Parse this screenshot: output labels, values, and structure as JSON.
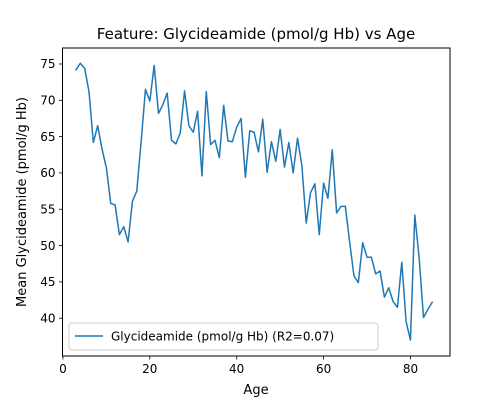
{
  "chart_data": {
    "type": "line",
    "title": "Feature: Glycideamide (pmol/g Hb) vs Age",
    "xlabel": "Age",
    "ylabel": "Mean Glycideamide (pmol/g Hb)",
    "xlim": [
      -0.1,
      89.1
    ],
    "ylim": [
      34.8,
      77.2
    ],
    "xticks": [
      0,
      20,
      40,
      60,
      80
    ],
    "yticks": [
      40,
      45,
      50,
      55,
      60,
      65,
      70,
      75
    ],
    "grid": false,
    "legend_position": "lower-left",
    "series": [
      {
        "name": "Glycideamide (pmol/g Hb) (R2=0.07)",
        "color": "#1f77b4",
        "x": [
          3,
          4,
          5,
          6,
          7,
          8,
          9,
          10,
          11,
          12,
          13,
          14,
          15,
          16,
          17,
          18,
          19,
          20,
          21,
          22,
          23,
          24,
          25,
          26,
          27,
          28,
          29,
          30,
          31,
          32,
          33,
          34,
          35,
          36,
          37,
          38,
          39,
          40,
          41,
          42,
          43,
          44,
          45,
          46,
          47,
          48,
          49,
          50,
          51,
          52,
          53,
          54,
          55,
          56,
          57,
          58,
          59,
          60,
          61,
          62,
          63,
          64,
          65,
          66,
          67,
          68,
          69,
          70,
          71,
          72,
          73,
          74,
          75,
          76,
          77,
          78,
          79,
          80,
          81,
          82,
          83,
          84,
          85
        ],
        "y": [
          74.2,
          75.1,
          74.4,
          71.2,
          64.2,
          66.5,
          63.3,
          60.7,
          55.8,
          55.6,
          51.5,
          52.6,
          50.5,
          56.1,
          57.5,
          64.3,
          71.5,
          69.9,
          74.8,
          68.2,
          69.4,
          71.0,
          64.5,
          64.0,
          65.5,
          71.3,
          66.5,
          65.6,
          68.5,
          59.6,
          71.2,
          63.9,
          64.5,
          62.1,
          69.3,
          64.4,
          64.3,
          66.3,
          67.5,
          59.4,
          65.8,
          65.6,
          62.9,
          67.4,
          60.1,
          64.3,
          61.6,
          66.0,
          60.8,
          64.2,
          60.0,
          64.8,
          61.0,
          53.1,
          57.3,
          58.5,
          51.5,
          58.6,
          56.5,
          63.2,
          54.5,
          55.4,
          55.4,
          50.5,
          45.8,
          44.9,
          50.4,
          48.4,
          48.4,
          46.1,
          46.5,
          42.9,
          44.2,
          42.3,
          41.5,
          47.7,
          39.5,
          37.0,
          54.2,
          48.3,
          40.1,
          41.2,
          42.2
        ]
      }
    ]
  }
}
